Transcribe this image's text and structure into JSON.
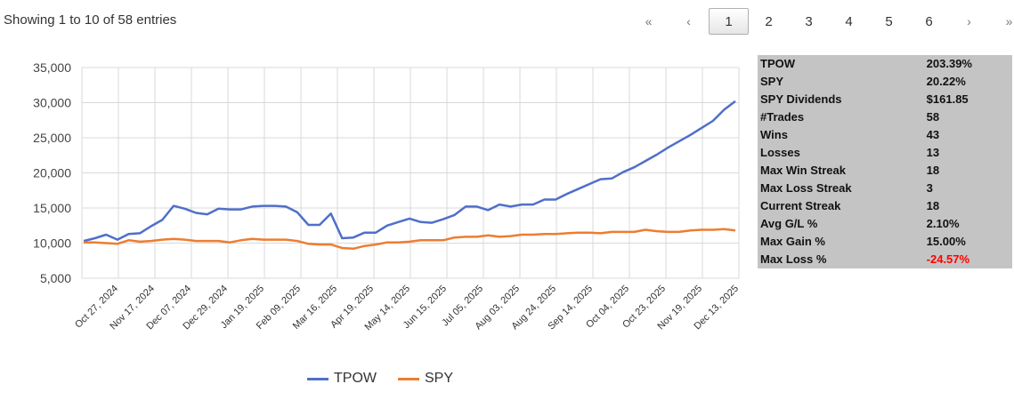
{
  "entries_info": "Showing 1 to 10 of 58 entries",
  "pagination": {
    "first": "«",
    "prev": "‹",
    "pages": [
      "1",
      "2",
      "3",
      "4",
      "5",
      "6"
    ],
    "active": "1",
    "next": "›",
    "last": "»"
  },
  "stats": [
    {
      "label": "TPOW",
      "value": "203.39%"
    },
    {
      "label": "SPY",
      "value": "20.22%"
    },
    {
      "label": "SPY Dividends",
      "value": "$161.85"
    },
    {
      "label": "#Trades",
      "value": "58"
    },
    {
      "label": "Wins",
      "value": "43"
    },
    {
      "label": "Losses",
      "value": "13"
    },
    {
      "label": "Max Win Streak",
      "value": "18"
    },
    {
      "label": "Max Loss Streak",
      "value": "3"
    },
    {
      "label": "Current Streak",
      "value": "18"
    },
    {
      "label": "Avg G/L %",
      "value": "2.10%"
    },
    {
      "label": "Max Gain %",
      "value": "15.00%"
    },
    {
      "label": "Max Loss %",
      "value": "-24.57%",
      "negative": true
    }
  ],
  "colors": {
    "tpow": "#4f6fc9",
    "spy": "#ed7d31",
    "negative": "#ff0000"
  },
  "chart_data": {
    "type": "line",
    "title": "",
    "xlabel": "",
    "ylabel": "",
    "ylim": [
      5000,
      35000
    ],
    "yticks": [
      "5,000",
      "10,000",
      "15,000",
      "20,000",
      "25,000",
      "30,000",
      "35,000"
    ],
    "xticks": [
      "Oct 27, 2024",
      "Nov 17, 2024",
      "Dec 07, 2024",
      "Dec 29, 2024",
      "Jan 19, 2025",
      "Feb 09, 2025",
      "Mar 16, 2025",
      "Apr 19, 2025",
      "May 14, 2025",
      "Jun 15, 2025",
      "Jul 05, 2025",
      "Aug 03, 2025",
      "Aug 24, 2025",
      "Sep 14, 2025",
      "Oct 04, 2025",
      "Oct 23, 2025",
      "Nov 19, 2025",
      "Dec 13, 2025"
    ],
    "grid": true,
    "legend_position": "bottom",
    "series": [
      {
        "name": "TPOW",
        "values": [
          10300,
          10700,
          11200,
          10500,
          11300,
          11400,
          12400,
          13300,
          15300,
          14900,
          14300,
          14100,
          14900,
          14800,
          14800,
          15200,
          15300,
          15300,
          15200,
          14400,
          12600,
          12600,
          14200,
          10700,
          10800,
          11500,
          11500,
          12500,
          13000,
          13500,
          13000,
          12900,
          13400,
          14000,
          15200,
          15200,
          14700,
          15500,
          15200,
          15500,
          15500,
          16200,
          16200,
          17000,
          17700,
          18400,
          19100,
          19200,
          20100,
          20800,
          21700,
          22600,
          23600,
          24500,
          25400,
          26400,
          27400,
          29000,
          30200
        ]
      },
      {
        "name": "SPY",
        "values": [
          10100,
          10100,
          10000,
          9900,
          10400,
          10200,
          10300,
          10500,
          10600,
          10500,
          10300,
          10300,
          10300,
          10100,
          10400,
          10600,
          10500,
          10500,
          10500,
          10300,
          9900,
          9800,
          9800,
          9300,
          9200,
          9600,
          9800,
          10100,
          10100,
          10200,
          10400,
          10400,
          10400,
          10800,
          10900,
          10900,
          11100,
          10900,
          11000,
          11200,
          11200,
          11300,
          11300,
          11400,
          11500,
          11500,
          11400,
          11600,
          11600,
          11600,
          11900,
          11700,
          11600,
          11600,
          11800,
          11900,
          11900,
          12000,
          11800
        ]
      }
    ]
  }
}
